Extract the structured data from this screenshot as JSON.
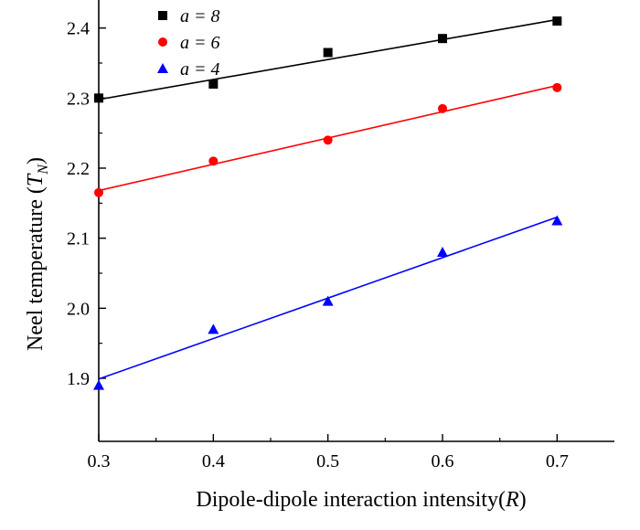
{
  "chart_data": {
    "type": "scatter",
    "title": "",
    "xlabel": "Dipole-dipole interaction intensity(R)",
    "xlabel_parts": {
      "text": "Dipole-dipole interaction intensity(",
      "var": "R",
      "close": ")"
    },
    "ylabel": "Neel temperature (T_N)",
    "ylabel_parts": {
      "text": "Neel temperature (",
      "var": "T",
      "sub": "N",
      "close": ")"
    },
    "xlim": [
      0.3,
      0.75
    ],
    "ylim": [
      1.81,
      2.44
    ],
    "xticks": [
      0.3,
      0.4,
      0.5,
      0.6,
      0.7
    ],
    "xtick_labels": [
      "0.3",
      "0.4",
      "0.5",
      "0.6",
      "0.7"
    ],
    "yticks": [
      1.9,
      2.0,
      2.1,
      2.2,
      2.3,
      2.4
    ],
    "ytick_labels": [
      "1.9",
      "2.0",
      "2.1",
      "2.2",
      "2.3",
      "2.4"
    ],
    "legend_position": "top-left",
    "series": [
      {
        "name": "a = 8",
        "color": "#000000",
        "marker": "square",
        "x": [
          0.3,
          0.4,
          0.5,
          0.6,
          0.7
        ],
        "y": [
          2.3,
          2.32,
          2.365,
          2.385,
          2.41
        ],
        "fit": {
          "x": [
            0.3,
            0.7
          ],
          "y": [
            2.298,
            2.412
          ]
        }
      },
      {
        "name": "a = 6",
        "color": "#ff0000",
        "marker": "circle",
        "x": [
          0.3,
          0.4,
          0.5,
          0.6,
          0.7
        ],
        "y": [
          2.165,
          2.21,
          2.24,
          2.285,
          2.315
        ],
        "fit": {
          "x": [
            0.3,
            0.7
          ],
          "y": [
            2.168,
            2.318
          ]
        }
      },
      {
        "name": "a = 4",
        "color": "#0000ff",
        "marker": "triangle",
        "x": [
          0.3,
          0.4,
          0.5,
          0.6,
          0.7
        ],
        "y": [
          1.89,
          1.97,
          2.01,
          2.08,
          2.125
        ],
        "fit": {
          "x": [
            0.3,
            0.7
          ],
          "y": [
            1.899,
            2.13
          ]
        }
      }
    ]
  }
}
